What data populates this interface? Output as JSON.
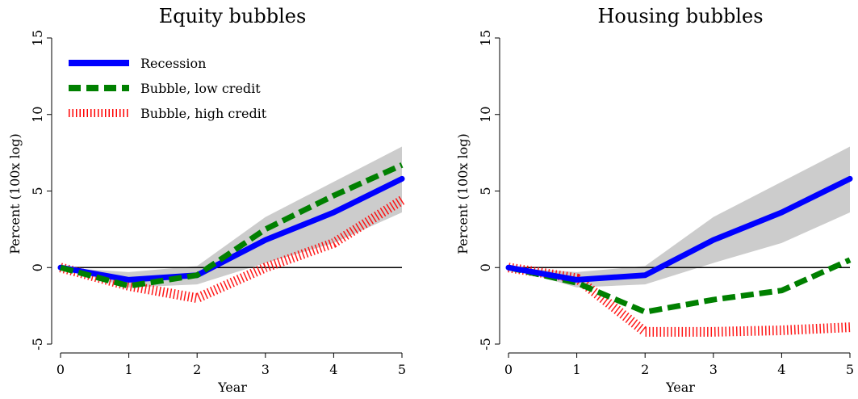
{
  "chart_data": [
    {
      "type": "line",
      "title": "Equity bubbles",
      "xlabel": "Year",
      "ylabel": "Percent (100x log)",
      "x": [
        0,
        1,
        2,
        3,
        4,
        5
      ],
      "xlim": [
        0,
        5
      ],
      "ylim": [
        -5,
        15
      ],
      "xticks": [
        "0",
        "1",
        "2",
        "3",
        "4",
        "5"
      ],
      "yticks": [
        "-5",
        "0",
        "5",
        "10",
        "15"
      ],
      "grid": false,
      "legend_position": "top-left",
      "band": {
        "lower": [
          0,
          -1.3,
          -1.1,
          0.3,
          1.6,
          3.6
        ],
        "upper": [
          0,
          -0.3,
          0.1,
          3.3,
          5.6,
          7.9
        ]
      },
      "series": [
        {
          "name": "Recession",
          "values": [
            0,
            -0.8,
            -0.5,
            1.8,
            3.6,
            5.8
          ],
          "color": "#0000ff",
          "style": "solid"
        },
        {
          "name": "Bubble, low credit",
          "values": [
            0,
            -1.2,
            -0.5,
            2.5,
            4.7,
            6.7
          ],
          "color": "#008000",
          "style": "dashed"
        },
        {
          "name": "Bubble, high credit",
          "values": [
            0,
            -1.2,
            -2.0,
            0,
            1.6,
            4.4
          ],
          "color": "#ff0000",
          "style": "dotted"
        }
      ]
    },
    {
      "type": "line",
      "title": "Housing bubbles",
      "xlabel": "Year",
      "ylabel": "Percent (100x log)",
      "x": [
        0,
        1,
        2,
        3,
        4,
        5
      ],
      "xlim": [
        0,
        5
      ],
      "ylim": [
        -5,
        15
      ],
      "xticks": [
        "0",
        "1",
        "2",
        "3",
        "4",
        "5"
      ],
      "yticks": [
        "-5",
        "0",
        "5",
        "10",
        "15"
      ],
      "grid": false,
      "band": {
        "lower": [
          0,
          -1.3,
          -1.1,
          0.3,
          1.6,
          3.6
        ],
        "upper": [
          0,
          -0.3,
          0.1,
          3.3,
          5.6,
          7.9
        ]
      },
      "series": [
        {
          "name": "Recession",
          "values": [
            0,
            -0.8,
            -0.5,
            1.8,
            3.6,
            5.8
          ],
          "color": "#0000ff",
          "style": "solid"
        },
        {
          "name": "Bubble, low credit",
          "values": [
            0,
            -1.0,
            -2.9,
            -2.1,
            -1.5,
            0.5
          ],
          "color": "#008000",
          "style": "dashed"
        },
        {
          "name": "Bubble, high credit",
          "values": [
            0,
            -0.7,
            -4.2,
            -4.2,
            -4.1,
            -3.9
          ],
          "color": "#ff0000",
          "style": "dotted"
        }
      ]
    }
  ]
}
